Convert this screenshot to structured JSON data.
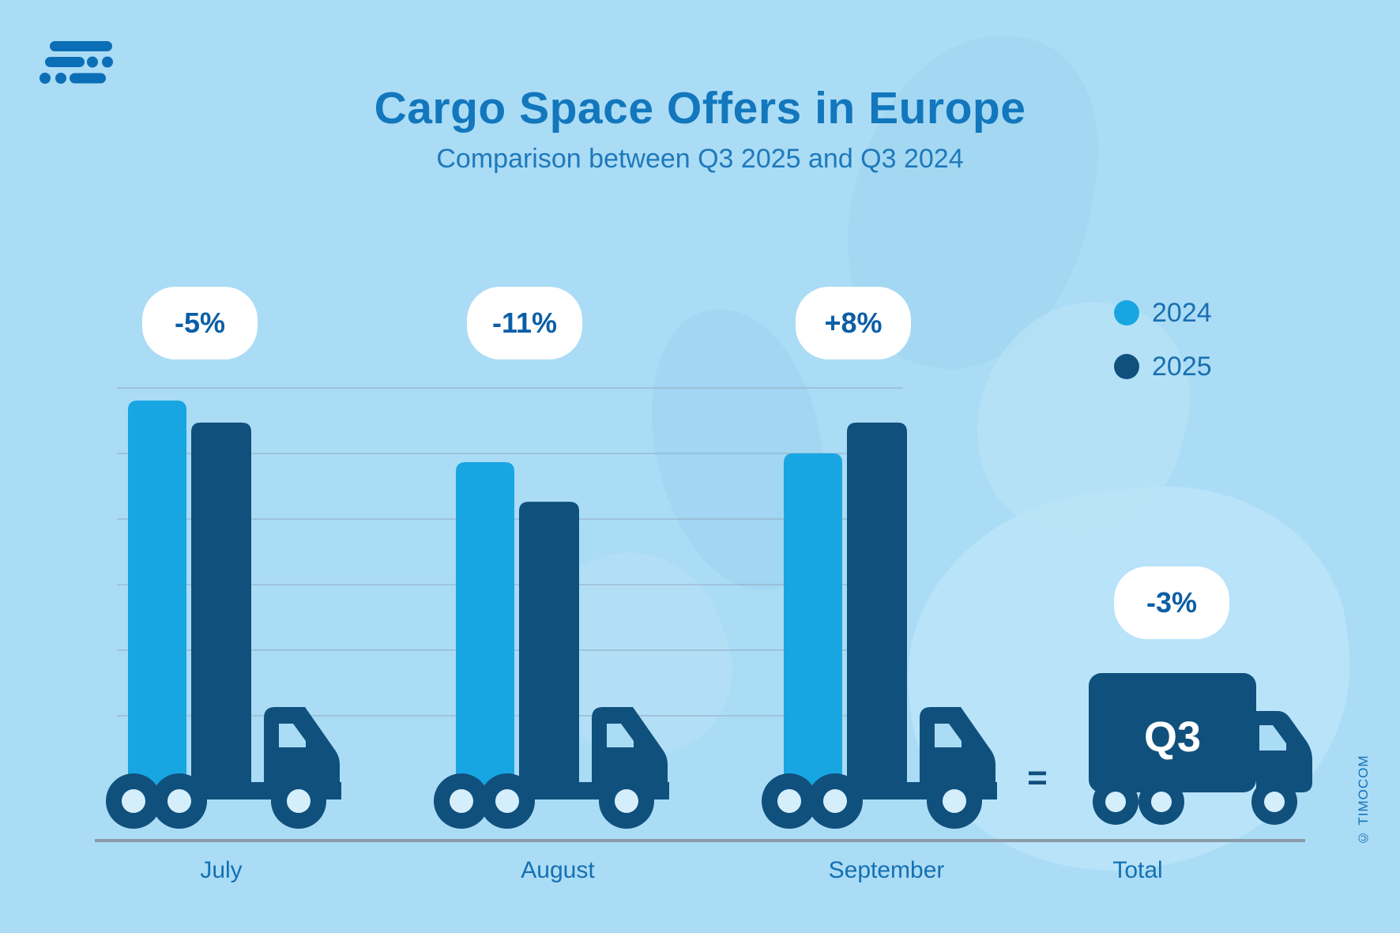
{
  "header": {
    "title": "Cargo Space Offers in Europe",
    "subtitle": "Comparison between Q3 2025 and Q3 2024"
  },
  "legend": {
    "position": "right",
    "items": [
      {
        "label": "2024",
        "color": "#18a6e2"
      },
      {
        "label": "2025",
        "color": "#10507d"
      }
    ]
  },
  "chart_data": {
    "type": "bar",
    "title": "Cargo Space Offers in Europe",
    "subtitle": "Comparison between Q3 2025 and Q3 2024",
    "categories": [
      "July",
      "August",
      "September"
    ],
    "series": [
      {
        "name": "2024",
        "color": "#18a6e2",
        "values": [
          100,
          86,
          88
        ]
      },
      {
        "name": "2025",
        "color": "#10507d",
        "values": [
          95,
          77,
          95
        ]
      }
    ],
    "change_labels": [
      "-5%",
      "-11%",
      "+8%"
    ],
    "total": {
      "label": "Total",
      "change_label": "-3%",
      "truck_text": "Q3",
      "equals_sign": "="
    },
    "axis": {
      "y_ticks_visible": false,
      "gridlines": 6,
      "grid": true,
      "legend_position": "top-right"
    }
  },
  "footer": {
    "copyright": "© TIMOCOM"
  }
}
